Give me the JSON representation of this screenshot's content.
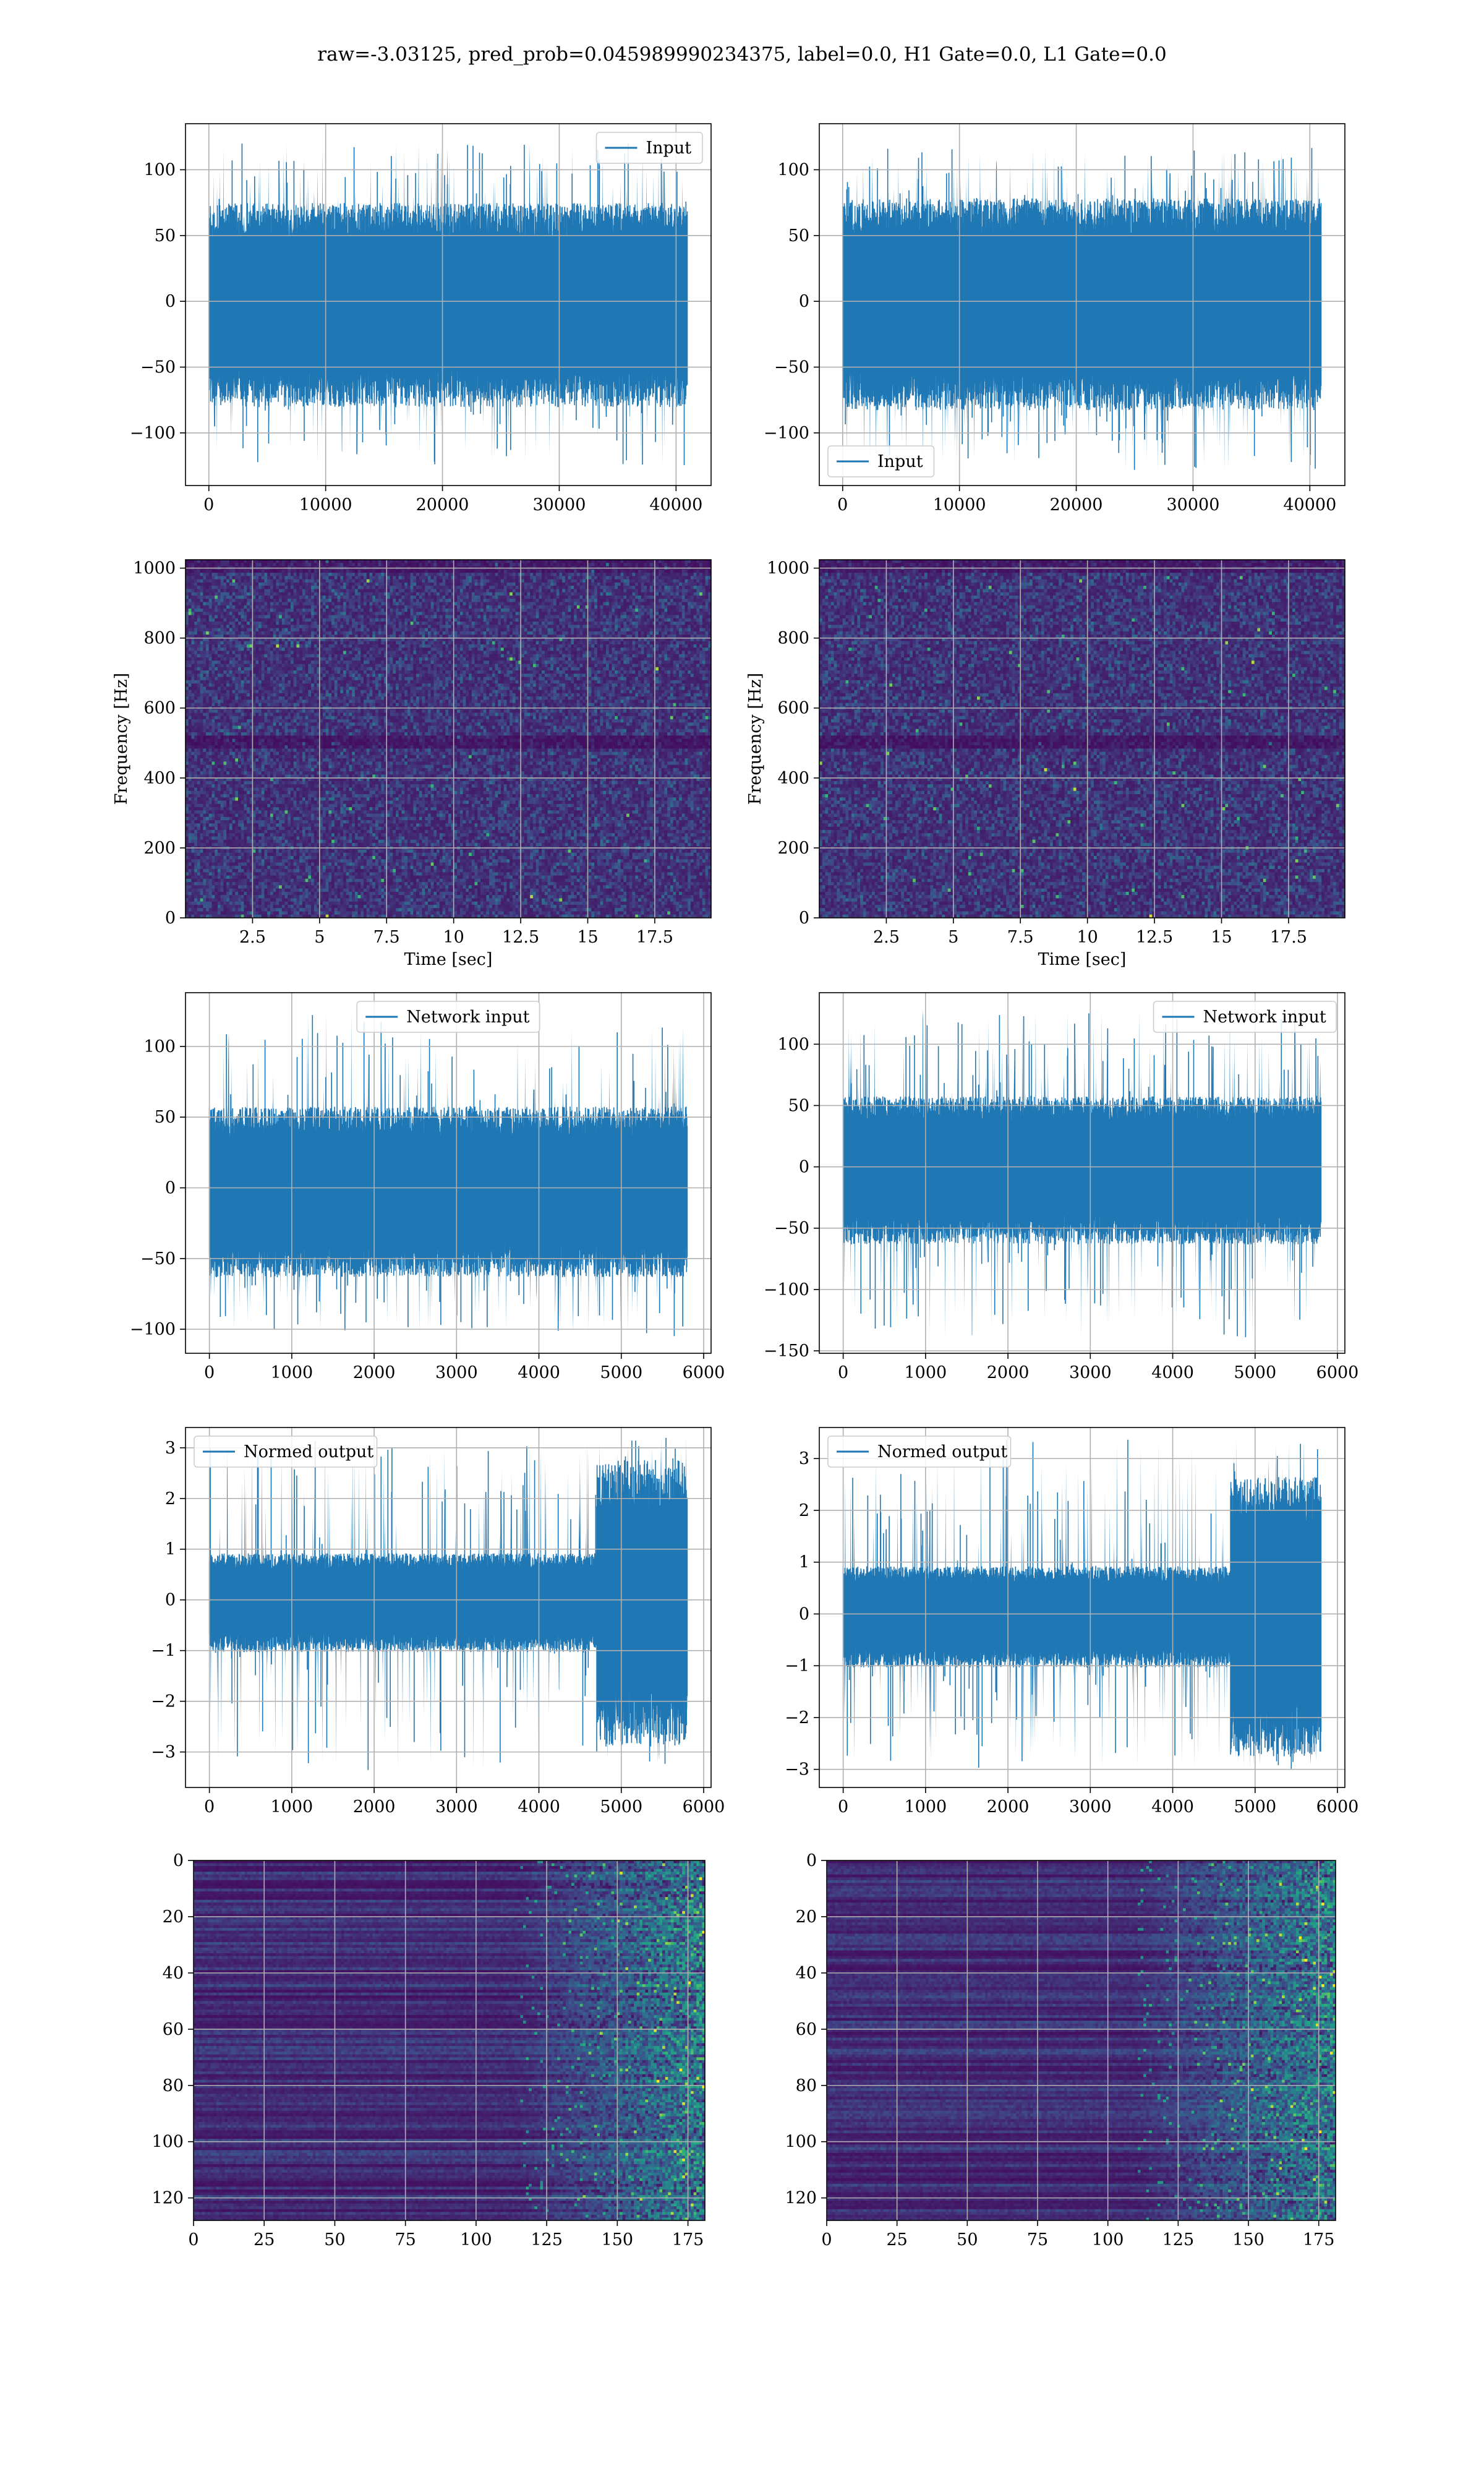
{
  "suptitle": "raw=-3.03125, pred_prob=0.045989990234375, label=0.0, H1 Gate=0.0, L1 Gate=0.0",
  "colors": {
    "line": "#1f77b4",
    "grid": "#b0b0b0",
    "viridis_low": "#440154",
    "viridis_mid": "#21918c",
    "viridis_high": "#fde725"
  },
  "chart_data": [
    {
      "type": "line",
      "panel": "row1-left",
      "series": [
        {
          "name": "Input",
          "x_range": [
            0,
            40960
          ],
          "envelope": [
            -70,
            65
          ],
          "extremes": [
            -125,
            120
          ]
        }
      ],
      "xlim": [
        -2000,
        43000
      ],
      "ylim": [
        -140,
        135
      ],
      "xticks": [
        0,
        10000,
        20000,
        30000,
        40000
      ],
      "yticks": [
        -100,
        -50,
        0,
        50,
        100
      ],
      "xlabel": "",
      "ylabel": "",
      "legend": "upper right",
      "grid": true
    },
    {
      "type": "line",
      "panel": "row1-right",
      "series": [
        {
          "name": "Input",
          "x_range": [
            0,
            40960
          ],
          "envelope": [
            -72,
            68
          ],
          "extremes": [
            -130,
            118
          ]
        }
      ],
      "xlim": [
        -2000,
        43000
      ],
      "ylim": [
        -140,
        135
      ],
      "xticks": [
        0,
        10000,
        20000,
        30000,
        40000
      ],
      "yticks": [
        -100,
        -50,
        0,
        50,
        100
      ],
      "xlabel": "",
      "ylabel": "",
      "legend": "lower left",
      "grid": true
    },
    {
      "type": "heatmap",
      "panel": "row2-left",
      "xlim": [
        0,
        19.6
      ],
      "ylim": [
        0,
        1024
      ],
      "xticks": [
        2.5,
        5.0,
        7.5,
        10.0,
        12.5,
        15.0,
        17.5
      ],
      "yticks": [
        0,
        200,
        400,
        600,
        800,
        1000
      ],
      "xlabel": "Time [sec]",
      "ylabel": "Frequency [Hz]",
      "colormap": "viridis",
      "grid": true
    },
    {
      "type": "heatmap",
      "panel": "row2-right",
      "xlim": [
        0,
        19.6
      ],
      "ylim": [
        0,
        1024
      ],
      "xticks": [
        2.5,
        5.0,
        7.5,
        10.0,
        12.5,
        15.0,
        17.5
      ],
      "yticks": [
        0,
        200,
        400,
        600,
        800,
        1000
      ],
      "xlabel": "Time [sec]",
      "ylabel": "Frequency [Hz]",
      "colormap": "viridis",
      "grid": true
    },
    {
      "type": "line",
      "panel": "row3-left",
      "series": [
        {
          "name": "Network input",
          "x_range": [
            0,
            5800
          ],
          "envelope": [
            -55,
            50
          ],
          "extremes": [
            -105,
            125
          ]
        }
      ],
      "xlim": [
        -290,
        6090
      ],
      "ylim": [
        -117,
        138
      ],
      "xticks": [
        0,
        1000,
        2000,
        3000,
        4000,
        5000,
        6000
      ],
      "yticks": [
        -100,
        -50,
        0,
        50,
        100
      ],
      "xlabel": "",
      "ylabel": "",
      "legend": "upper center",
      "grid": true
    },
    {
      "type": "line",
      "panel": "row3-right",
      "series": [
        {
          "name": "Network input",
          "x_range": [
            0,
            5800
          ],
          "envelope": [
            -55,
            50
          ],
          "extremes": [
            -140,
            128
          ]
        }
      ],
      "xlim": [
        -290,
        6090
      ],
      "ylim": [
        -152,
        142
      ],
      "xticks": [
        0,
        1000,
        2000,
        3000,
        4000,
        5000,
        6000
      ],
      "yticks": [
        -150,
        -100,
        -50,
        0,
        50,
        100
      ],
      "xlabel": "",
      "ylabel": "",
      "legend": "upper right",
      "grid": true
    },
    {
      "type": "line",
      "panel": "row4-left",
      "series": [
        {
          "name": "Normed output",
          "x_range": [
            0,
            5800
          ],
          "envelope": [
            -0.9,
            0.8
          ],
          "burst_from": 4700,
          "burst_envelope": [
            -2.5,
            2.4
          ],
          "extremes": [
            -3.4,
            3.2
          ]
        }
      ],
      "xlim": [
        -290,
        6090
      ],
      "ylim": [
        -3.7,
        3.4
      ],
      "xticks": [
        0,
        1000,
        2000,
        3000,
        4000,
        5000,
        6000
      ],
      "yticks": [
        -3,
        -2,
        -1,
        0,
        1,
        2,
        3
      ],
      "xlabel": "",
      "ylabel": "",
      "legend": "upper left",
      "grid": true
    },
    {
      "type": "line",
      "panel": "row4-right",
      "series": [
        {
          "name": "Normed output",
          "x_range": [
            0,
            5800
          ],
          "envelope": [
            -0.9,
            0.8
          ],
          "burst_from": 4700,
          "burst_envelope": [
            -2.4,
            2.3
          ],
          "extremes": [
            -3.0,
            3.4
          ]
        }
      ],
      "xlim": [
        -290,
        6090
      ],
      "ylim": [
        -3.35,
        3.6
      ],
      "xticks": [
        0,
        1000,
        2000,
        3000,
        4000,
        5000,
        6000
      ],
      "yticks": [
        -3,
        -2,
        -1,
        0,
        1,
        2,
        3
      ],
      "xlabel": "",
      "ylabel": "",
      "legend": "upper left",
      "grid": true
    },
    {
      "type": "heatmap",
      "panel": "row5-left",
      "xlim": [
        0,
        181
      ],
      "ylim": [
        128,
        0
      ],
      "bright_from": 115,
      "xticks": [
        0,
        25,
        50,
        75,
        100,
        125,
        150,
        175
      ],
      "yticks": [
        0,
        20,
        40,
        60,
        80,
        100,
        120
      ],
      "xlabel": "",
      "ylabel": "",
      "colormap": "viridis",
      "grid": true
    },
    {
      "type": "heatmap",
      "panel": "row5-right",
      "xlim": [
        0,
        181
      ],
      "ylim": [
        128,
        0
      ],
      "bright_from": 110,
      "xticks": [
        0,
        25,
        50,
        75,
        100,
        125,
        150,
        175
      ],
      "yticks": [
        0,
        20,
        40,
        60,
        80,
        100,
        120
      ],
      "xlabel": "",
      "ylabel": "",
      "colormap": "viridis",
      "grid": true
    }
  ]
}
